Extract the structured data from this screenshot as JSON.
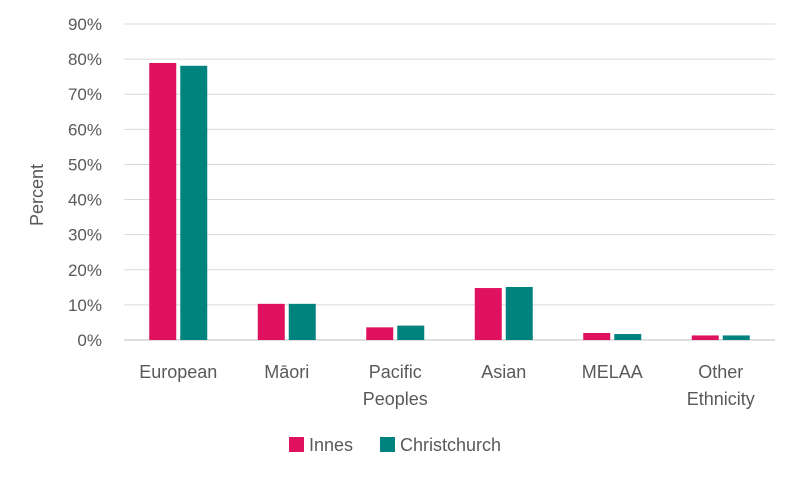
{
  "chart_data": {
    "type": "bar",
    "title": "",
    "xlabel": "",
    "ylabel": "Percent",
    "ylim": [
      0,
      90
    ],
    "yticks": [
      "0%",
      "10%",
      "20%",
      "30%",
      "40%",
      "50%",
      "60%",
      "70%",
      "80%",
      "90%"
    ],
    "categories": [
      [
        "European"
      ],
      [
        "Māori"
      ],
      [
        "Pacific",
        "Peoples"
      ],
      [
        "Asian"
      ],
      [
        "MELAA"
      ],
      [
        "Other",
        "Ethnicity"
      ]
    ],
    "series": [
      {
        "name": "Innes",
        "color": "#E0115F",
        "values": [
          78.9,
          10.3,
          3.6,
          14.8,
          2.0,
          1.3
        ]
      },
      {
        "name": "Christchurch",
        "color": "#00827F",
        "values": [
          78.1,
          10.3,
          4.1,
          15.1,
          1.7,
          1.3
        ]
      }
    ],
    "grid": true,
    "legend_position": "bottom"
  }
}
